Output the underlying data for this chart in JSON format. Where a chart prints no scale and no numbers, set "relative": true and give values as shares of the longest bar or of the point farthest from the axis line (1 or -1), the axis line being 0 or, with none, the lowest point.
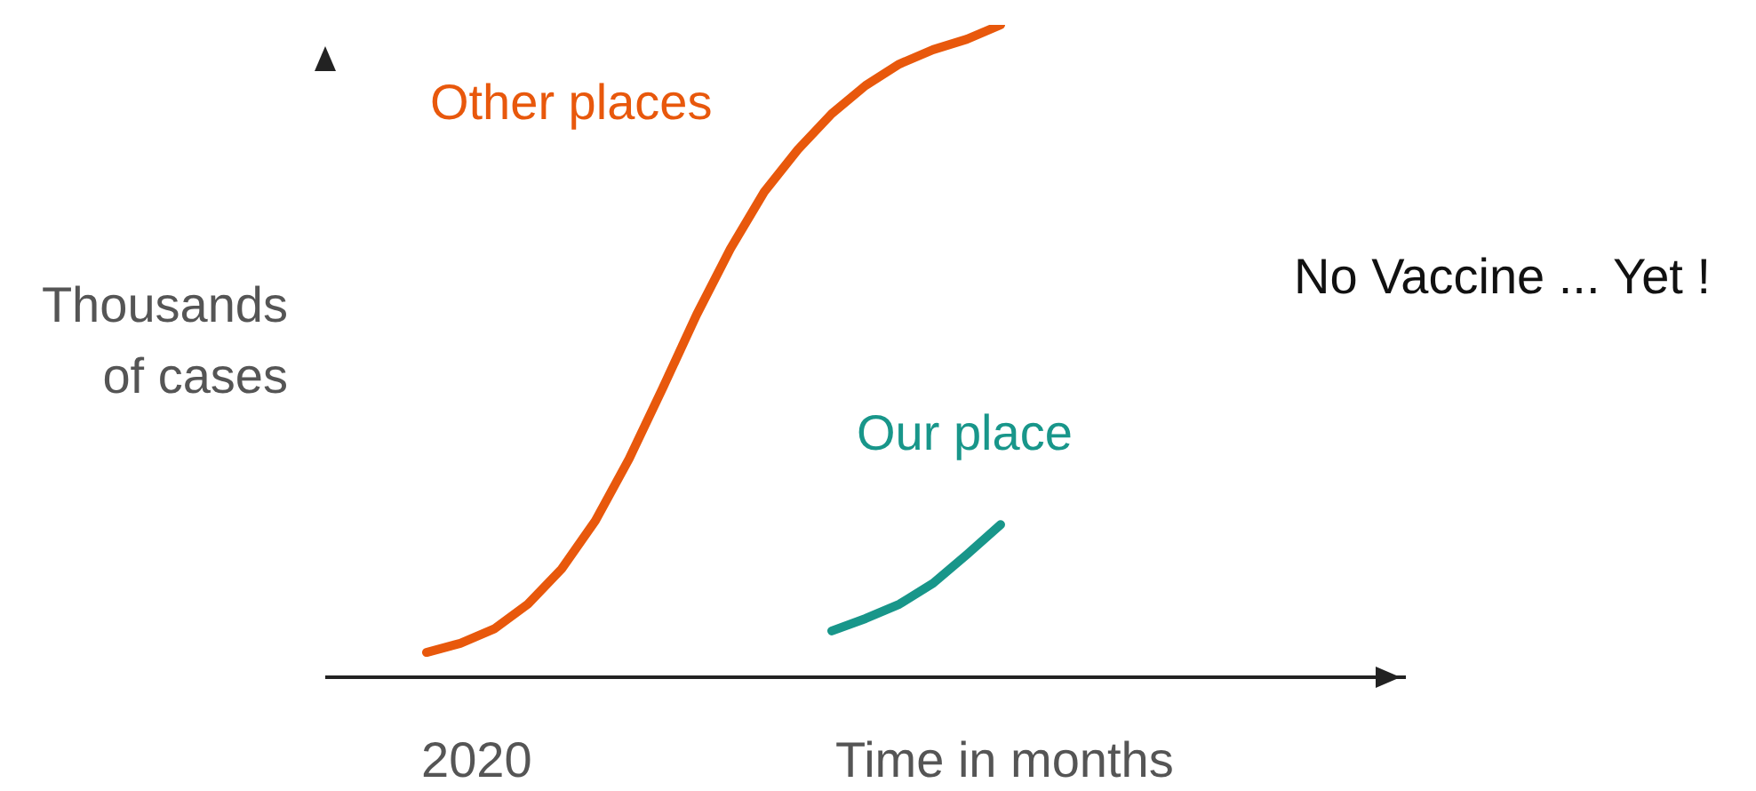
{
  "chart_data": {
    "type": "line",
    "relative": true,
    "xlabel": "Time in months",
    "ylabel": "Thousands of cases",
    "annotations": [
      "No Vaccine ... Yet !",
      "2020"
    ],
    "grid": false,
    "marker": "none",
    "line_style": "solid",
    "categories": [
      null,
      null,
      null,
      null,
      null,
      null,
      null,
      null,
      null,
      null,
      null,
      null,
      null,
      null,
      null,
      null,
      null,
      null,
      null,
      null,
      null,
      null,
      null,
      null,
      null,
      null,
      null,
      null,
      null
    ],
    "series": [
      {
        "name": "Other places",
        "color": "#e8580c",
        "values": [
          0.038,
          0.052,
          0.074,
          0.112,
          0.166,
          0.24,
          0.335,
          0.444,
          0.556,
          0.657,
          0.744,
          0.809,
          0.864,
          0.907,
          0.94,
          0.962,
          0.978,
          1.0,
          null,
          null,
          null,
          null,
          null,
          null,
          null,
          null,
          null,
          null,
          null
        ]
      },
      {
        "name": "Our place",
        "color": "#18968a",
        "values": [
          null,
          null,
          null,
          null,
          null,
          null,
          null,
          null,
          null,
          null,
          null,
          null,
          0.071,
          0.09,
          0.112,
          0.144,
          0.188,
          0.234,
          null,
          null,
          null,
          null,
          null,
          null,
          null,
          null,
          null,
          null,
          null
        ]
      }
    ]
  }
}
